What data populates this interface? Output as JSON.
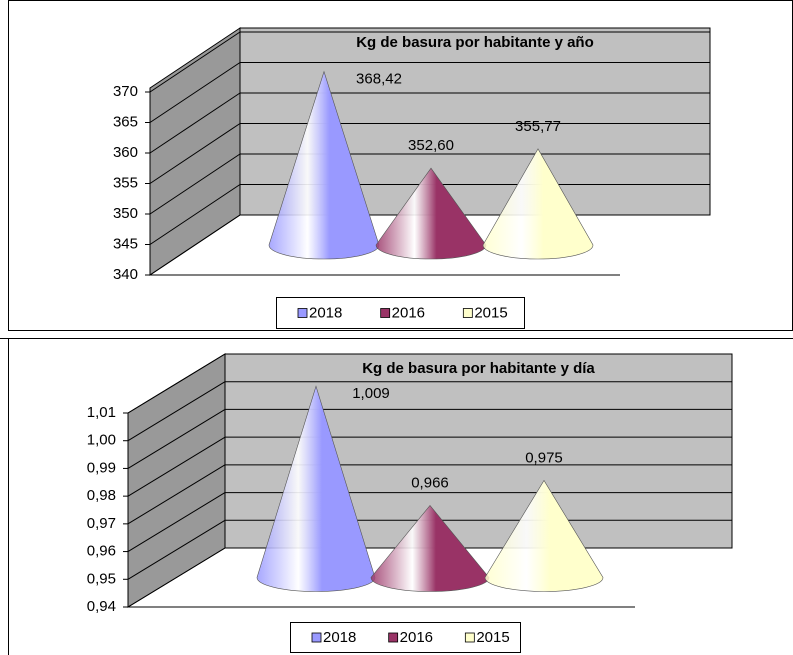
{
  "chart_data": [
    {
      "type": "cone",
      "title": "Kg de basura por habitante y año",
      "series": [
        {
          "name": "2018",
          "color": "#9999ff",
          "values": [
            368.42
          ],
          "value_labels": [
            "368,42"
          ]
        },
        {
          "name": "2016",
          "color": "#993366",
          "values": [
            352.6
          ],
          "value_labels": [
            "352,60"
          ]
        },
        {
          "name": "2015",
          "color": "#ffffcc",
          "values": [
            355.77
          ],
          "value_labels": [
            "355,77"
          ]
        }
      ],
      "ylim": [
        340,
        370
      ],
      "yticks": [
        340,
        345,
        350,
        355,
        360,
        365,
        370
      ],
      "grid": true,
      "legend": "bottom"
    },
    {
      "type": "cone",
      "title": "Kg de basura por habitante y día",
      "series": [
        {
          "name": "2018",
          "color": "#9999ff",
          "values": [
            1.009
          ],
          "value_labels": [
            "1,009"
          ]
        },
        {
          "name": "2016",
          "color": "#993366",
          "values": [
            0.966
          ],
          "value_labels": [
            "0,966"
          ]
        },
        {
          "name": "2015",
          "color": "#ffffcc",
          "values": [
            0.975
          ],
          "value_labels": [
            "0,975"
          ]
        }
      ],
      "ylim": [
        0.94,
        1.01
      ],
      "yticks": [
        {
          "value": 0.94,
          "label": "0,94"
        },
        {
          "value": 0.95,
          "label": "0,95"
        },
        {
          "value": 0.96,
          "label": "0,96"
        },
        {
          "value": 0.97,
          "label": "0,97"
        },
        {
          "value": 0.98,
          "label": "0,98"
        },
        {
          "value": 0.99,
          "label": "0,99"
        },
        {
          "value": 1.0,
          "label": "1,00"
        },
        {
          "value": 1.01,
          "label": "1,01"
        }
      ],
      "grid": true,
      "legend": "bottom"
    }
  ]
}
